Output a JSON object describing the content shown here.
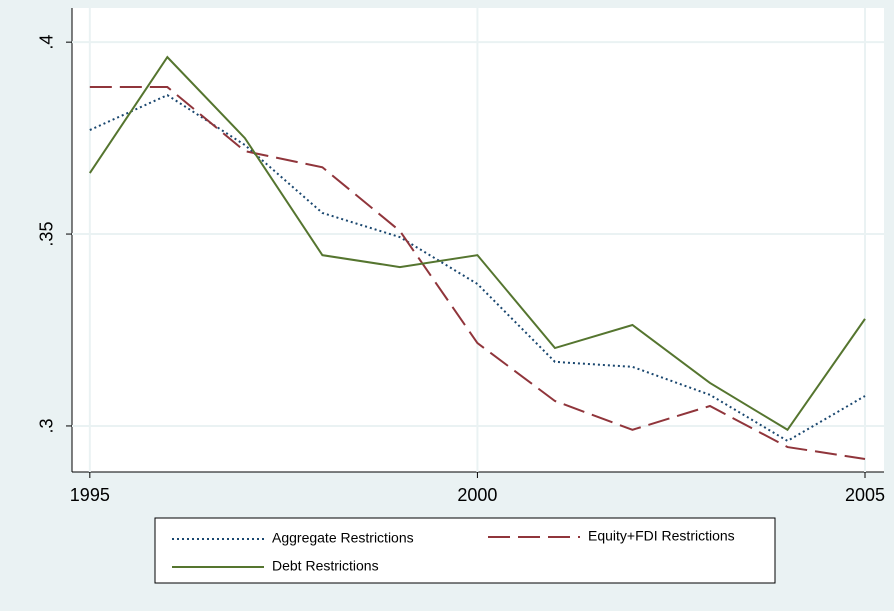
{
  "chart_data": {
    "type": "line",
    "x": [
      1995,
      1996,
      1997,
      1998,
      1999,
      2000,
      2001,
      2002,
      2003,
      2004,
      2005
    ],
    "series": [
      {
        "name": "Aggregate Restrictions",
        "color": "#1a476f",
        "dash": "dotted",
        "values": [
          0.3771,
          0.3862,
          0.3732,
          0.3555,
          0.3492,
          0.337,
          0.3167,
          0.3154,
          0.3081,
          0.2961,
          0.3078
        ]
      },
      {
        "name": "Equity+FDI Restrictions",
        "color": "#90353b",
        "dash": "dashed",
        "values": [
          0.3883,
          0.3883,
          0.3716,
          0.3674,
          0.3508,
          0.3216,
          0.3065,
          0.299,
          0.3052,
          0.2945,
          0.2914
        ]
      },
      {
        "name": "Debt Restrictions",
        "color": "#55752f",
        "dash": "solid",
        "values": [
          0.3659,
          0.3961,
          0.375,
          0.3445,
          0.3414,
          0.3445,
          0.3203,
          0.3263,
          0.3112,
          0.299,
          0.3279
        ]
      }
    ],
    "xlim": [
      1994.77,
      2005.245
    ],
    "xticks": [
      1995,
      2000,
      2005
    ],
    "ylim": [
      0.288,
      0.4089
    ],
    "yticks": [
      {
        "value": 0.3,
        "label": ".3"
      },
      {
        "value": 0.35,
        "label": ".35"
      },
      {
        "value": 0.4,
        "label": ".4"
      }
    ],
    "grid": true
  }
}
